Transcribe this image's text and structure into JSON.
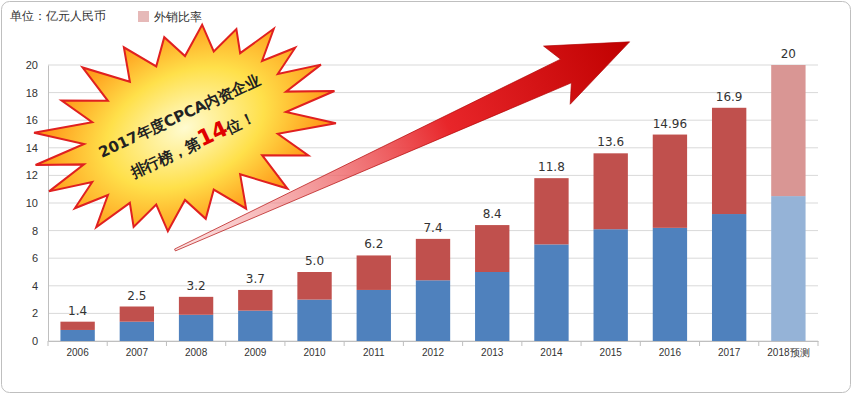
{
  "chart_data": {
    "type": "bar",
    "stacked": true,
    "ylabel": "单位：亿元人民币",
    "categories": [
      "2006",
      "2007",
      "2008",
      "2009",
      "2010",
      "2011",
      "2012",
      "2013",
      "2014",
      "2015",
      "2016",
      "2017",
      "2018预测"
    ],
    "series": [
      {
        "values": [
          0.8,
          1.4,
          1.9,
          2.2,
          3.0,
          3.7,
          4.4,
          5.0,
          7.0,
          8.1,
          8.2,
          9.2,
          10.5
        ],
        "colors": [
          "#4f81bd",
          "#4f81bd",
          "#4f81bd",
          "#4f81bd",
          "#4f81bd",
          "#4f81bd",
          "#4f81bd",
          "#4f81bd",
          "#4f81bd",
          "#4f81bd",
          "#4f81bd",
          "#4f81bd",
          "#95b3d7"
        ]
      },
      {
        "name": "外销比率",
        "color": "#e6b9b8",
        "values": [
          0.6,
          1.1,
          1.3,
          1.5,
          2.0,
          2.5,
          3.0,
          3.4,
          4.8,
          5.5,
          6.76,
          7.7,
          9.5
        ],
        "colors": [
          "#c0504d",
          "#c0504d",
          "#c0504d",
          "#c0504d",
          "#c0504d",
          "#c0504d",
          "#c0504d",
          "#c0504d",
          "#c0504d",
          "#c0504d",
          "#c0504d",
          "#c0504d",
          "#d99694"
        ]
      }
    ],
    "totals": [
      1.4,
      2.5,
      3.2,
      3.7,
      5.0,
      6.2,
      7.4,
      8.4,
      11.8,
      13.6,
      14.96,
      16.9,
      20
    ],
    "total_labels": [
      "1.4",
      "2.5",
      "3.2",
      "3.7",
      "5.0",
      "6.2",
      "7.4",
      "8.4",
      "11.8",
      "13.6",
      "14.96",
      "16.9",
      "20"
    ],
    "ylim": [
      0,
      20
    ],
    "yticks": [
      0,
      2,
      4,
      6,
      8,
      10,
      12,
      14,
      16,
      18,
      20
    ],
    "grid": true,
    "legend": "top-left",
    "annotations": [
      "2017年度CPCA内资企业",
      "排行榜，第",
      "14",
      "位！"
    ]
  }
}
